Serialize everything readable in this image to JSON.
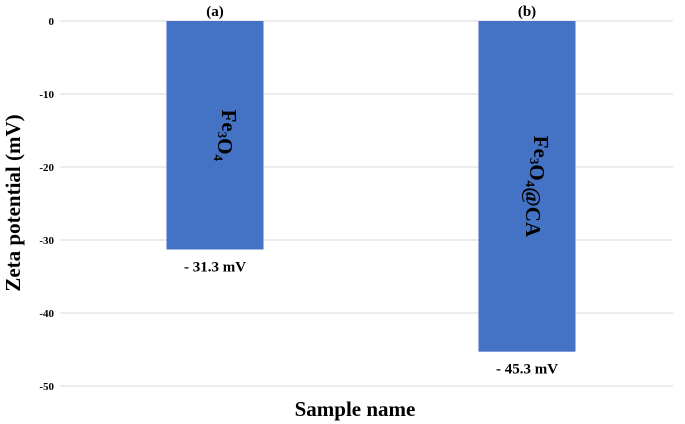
{
  "chart_data": {
    "type": "bar",
    "categories": [
      "Fe3O4",
      "Fe3O4@CA"
    ],
    "values": [
      -31.3,
      -45.3
    ],
    "data_labels": [
      "- 31.3 mV",
      "- 45.3 mV"
    ],
    "panel_labels": [
      "(a)",
      "(b)"
    ],
    "bar_labels": [
      {
        "parts": [
          {
            "t": "Fe",
            "sub": false
          },
          {
            "t": "3",
            "sub": true
          },
          {
            "t": "O",
            "sub": false
          },
          {
            "t": "4",
            "sub": true
          }
        ]
      },
      {
        "parts": [
          {
            "t": "Fe",
            "sub": false
          },
          {
            "t": "3",
            "sub": true
          },
          {
            "t": "O",
            "sub": false
          },
          {
            "t": "4",
            "sub": true
          },
          {
            "t": "@CA",
            "sub": false
          }
        ]
      }
    ],
    "xlabel": "Sample name",
    "ylabel": "Zeta potential (mV)",
    "ylim": [
      -50,
      0
    ],
    "yticks": [
      0,
      -10,
      -20,
      -30,
      -40,
      -50
    ],
    "grid": true,
    "bar_color": "#4472C4",
    "grid_color": "#d9d9d9"
  }
}
